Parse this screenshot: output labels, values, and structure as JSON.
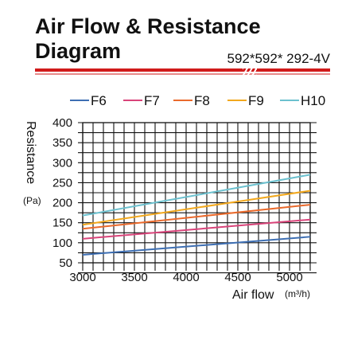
{
  "header": {
    "title_line1": "Air Flow & Resistance",
    "title_line2": "Diagram",
    "model": "592*592* 292-4V"
  },
  "chart_data": {
    "type": "line",
    "xlabel": "Air flow",
    "xunit": "(m³/h)",
    "ylabel": "Resistance",
    "yunit": "(Pa)",
    "xlim": [
      3000,
      5200
    ],
    "ylim": [
      50,
      400
    ],
    "xticks": [
      3000,
      3500,
      4000,
      4500,
      5000
    ],
    "yticks": [
      50,
      100,
      150,
      200,
      250,
      300,
      350,
      400
    ],
    "grid": true,
    "legend_position": "top",
    "series": [
      {
        "name": "F6",
        "color": "#3e6fb3",
        "x": [
          3000,
          5200
        ],
        "values": [
          70,
          115
        ]
      },
      {
        "name": "F7",
        "color": "#d9447a",
        "x": [
          3000,
          5200
        ],
        "values": [
          110,
          158
        ]
      },
      {
        "name": "F8",
        "color": "#ea6a2c",
        "x": [
          3000,
          5200
        ],
        "values": [
          135,
          195
        ]
      },
      {
        "name": "F9",
        "color": "#f2a81d",
        "x": [
          3000,
          5200
        ],
        "values": [
          145,
          230
        ]
      },
      {
        "name": "H10",
        "color": "#6cc1cf",
        "x": [
          3000,
          5200
        ],
        "values": [
          168,
          270
        ]
      }
    ]
  }
}
